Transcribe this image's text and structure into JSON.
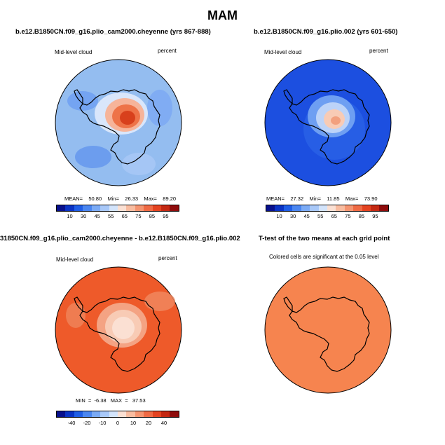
{
  "title": "MAM",
  "panels": [
    {
      "title": "b.e12.B1850CN.f09_g16.plio_cam2000.cheyenne (yrs 867-888)",
      "left_label": "Mid-level cloud",
      "right_label": "percent",
      "stats": "MEAN=    50.80    Min=    26.33    Max=    89.20",
      "bg_color": "#94bdf0",
      "colorbar": "abs",
      "ticks": [
        "10",
        "30",
        "45",
        "55",
        "65",
        "75",
        "85",
        "95"
      ]
    },
    {
      "title": "b.e12.B1850CN.f09_g16.plio.002 (yrs 601-650)",
      "left_label": "Mid-level cloud",
      "right_label": "percent",
      "stats": "MEAN=    27.32    Min=    11.85    Max=    73.90",
      "bg_color": "#1c4fe0",
      "colorbar": "abs",
      "ticks": [
        "10",
        "30",
        "45",
        "55",
        "65",
        "75",
        "85",
        "95"
      ]
    },
    {
      "title": "31850CN.f09_g16.plio_cam2000.cheyenne - b.e12.B1850CN.f09_g16.plio.002",
      "left_label": "Mid-level cloud",
      "right_label": "percent",
      "stats": "MIN  =  -6.38   MAX  =   37.53",
      "bg_color": "#ee5a2a",
      "colorbar": "diff",
      "ticks": [
        "-40",
        "-20",
        "-10",
        "0",
        "10",
        "20",
        "40"
      ]
    },
    {
      "title": "T-test of the two means at each grid point",
      "left_label": "Colored cells are significant at the 0.05 level",
      "bg_color": "#f6844f"
    }
  ],
  "colors": {
    "abs_scale": [
      "#08108c",
      "#0a33c4",
      "#1f5ee6",
      "#4a86f0",
      "#7aaaf5",
      "#a8c8f8",
      "#d3e4fb",
      "#fbe0d3",
      "#f8bca0",
      "#f49470",
      "#ef6a44",
      "#e44320",
      "#c42812",
      "#8e0b0b"
    ],
    "diff_scale": [
      "#08108c",
      "#0a33c4",
      "#1f5ee6",
      "#4a86f0",
      "#7aaaf5",
      "#a8c8f8",
      "#d3e4fb",
      "#fbe0d3",
      "#f8bca0",
      "#f49470",
      "#ef6a44",
      "#e44320",
      "#c42812",
      "#8e0b0b"
    ]
  }
}
